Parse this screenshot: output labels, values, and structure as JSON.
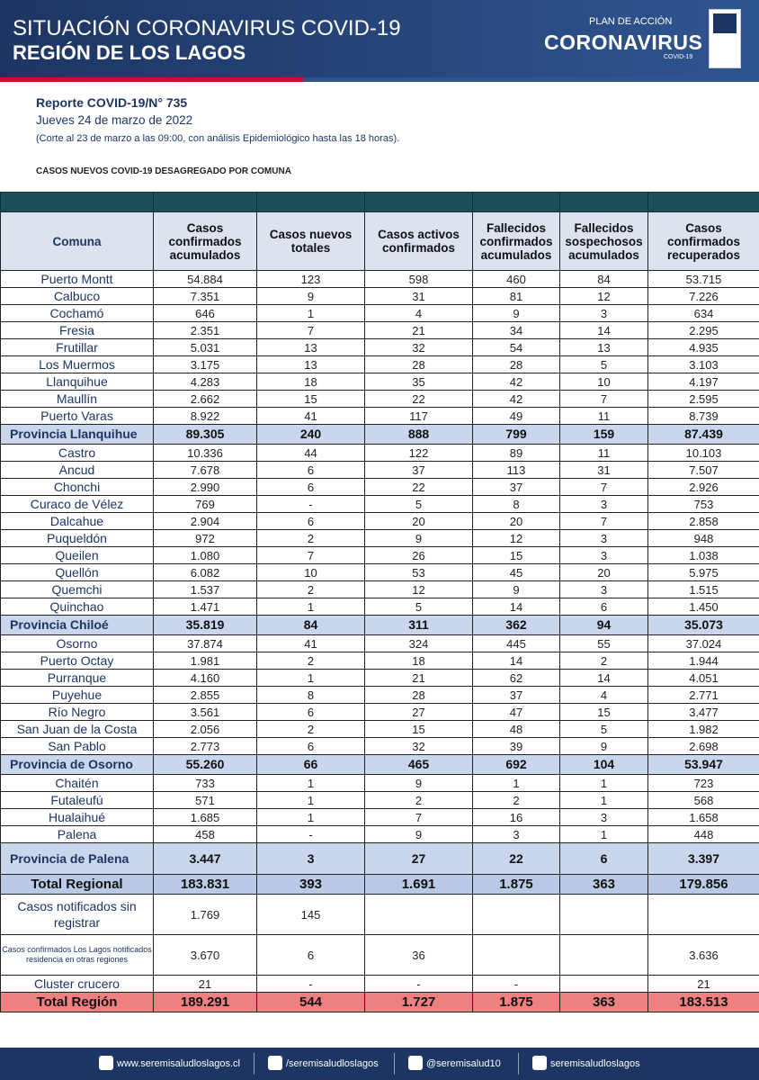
{
  "header": {
    "title": "SITUACIÓN CORONAVIRUS COVID-19",
    "subtitle": "REGIÓN DE LOS LAGOS",
    "logo_top": "PLAN DE ACCIÓN",
    "logo_main": "CORONAVIRUS",
    "logo_sub": "COVID-19"
  },
  "report": {
    "number": "Reporte COVID-19/N° 735",
    "date": "Jueves 24 de marzo  de 2022",
    "note": "(Corte al  23  de marzo a las 09:00, con análisis Epidemiológico hasta las 18 horas).",
    "section_title": "CASOS NUEVOS COVID-19 DESAGREGADO POR COMUNA"
  },
  "table": {
    "headers": [
      "Comuna",
      "Casos confirmados acumulados",
      "Casos nuevos totales",
      "Casos activos confirmados",
      "Fallecidos confirmados acumulados",
      "Fallecidos sospechosos acumulados",
      "Casos confirmados recuperados"
    ],
    "sections": [
      {
        "rows": [
          [
            "Puerto Montt",
            "54.884",
            "123",
            "598",
            "460",
            "84",
            "53.715"
          ],
          [
            "Calbuco",
            "7.351",
            "9",
            "31",
            "81",
            "12",
            "7.226"
          ],
          [
            "Cochamó",
            "646",
            "1",
            "4",
            "9",
            "3",
            "634"
          ],
          [
            "Fresia",
            "2.351",
            "7",
            "21",
            "34",
            "14",
            "2.295"
          ],
          [
            "Frutillar",
            "5.031",
            "13",
            "32",
            "54",
            "13",
            "4.935"
          ],
          [
            "Los Muermos",
            "3.175",
            "13",
            "28",
            "28",
            "5",
            "3.103"
          ],
          [
            "Llanquihue",
            "4.283",
            "18",
            "35",
            "42",
            "10",
            "4.197"
          ],
          [
            "Maullín",
            "2.662",
            "15",
            "22",
            "42",
            "7",
            "2.595"
          ],
          [
            "Puerto Varas",
            "8.922",
            "41",
            "117",
            "49",
            "11",
            "8.739"
          ]
        ],
        "subtotal": [
          "Provincia Llanquihue",
          "89.305",
          "240",
          "888",
          "799",
          "159",
          "87.439"
        ]
      },
      {
        "rows": [
          [
            "Castro",
            "10.336",
            "44",
            "122",
            "89",
            "11",
            "10.103"
          ],
          [
            "Ancud",
            "7.678",
            "6",
            "37",
            "113",
            "31",
            "7.507"
          ],
          [
            "Chonchi",
            "2.990",
            "6",
            "22",
            "37",
            "7",
            "2.926"
          ],
          [
            "Curaco de Vélez",
            "769",
            "-",
            "5",
            "8",
            "3",
            "753"
          ],
          [
            "Dalcahue",
            "2.904",
            "6",
            "20",
            "20",
            "7",
            "2.858"
          ],
          [
            "Puqueldón",
            "972",
            "2",
            "9",
            "12",
            "3",
            "948"
          ],
          [
            "Queilen",
            "1.080",
            "7",
            "26",
            "15",
            "3",
            "1.038"
          ],
          [
            "Quellón",
            "6.082",
            "10",
            "53",
            "45",
            "20",
            "5.975"
          ],
          [
            "Quemchi",
            "1.537",
            "2",
            "12",
            "9",
            "3",
            "1.515"
          ],
          [
            "Quinchao",
            "1.471",
            "1",
            "5",
            "14",
            "6",
            "1.450"
          ]
        ],
        "subtotal": [
          "Provincia  Chiloé",
          "35.819",
          "84",
          "311",
          "362",
          "94",
          "35.073"
        ]
      },
      {
        "rows": [
          [
            "Osorno",
            "37.874",
            "41",
            "324",
            "445",
            "55",
            "37.024"
          ],
          [
            "Puerto Octay",
            "1.981",
            "2",
            "18",
            "14",
            "2",
            "1.944"
          ],
          [
            "Purranque",
            "4.160",
            "1",
            "21",
            "62",
            "14",
            "4.051"
          ],
          [
            "Puyehue",
            "2.855",
            "8",
            "28",
            "37",
            "4",
            "2.771"
          ],
          [
            "Río Negro",
            "3.561",
            "6",
            "27",
            "47",
            "15",
            "3.477"
          ],
          [
            "San Juan de la Costa",
            "2.056",
            "2",
            "15",
            "48",
            "5",
            "1.982"
          ],
          [
            "San Pablo",
            "2.773",
            "6",
            "32",
            "39",
            "9",
            "2.698"
          ]
        ],
        "subtotal": [
          "Provincia de Osorno",
          "55.260",
          "66",
          "465",
          "692",
          "104",
          "53.947"
        ]
      },
      {
        "rows": [
          [
            "Chaitén",
            "733",
            "1",
            "9",
            "1",
            "1",
            "723"
          ],
          [
            "Futaleufú",
            "571",
            "1",
            "2",
            "2",
            "1",
            "568"
          ],
          [
            "Hualaihué",
            "1.685",
            "1",
            "7",
            "16",
            "3",
            "1.658"
          ],
          [
            "Palena",
            "458",
            "-",
            "9",
            "3",
            "1",
            "448"
          ]
        ],
        "subtotal": [
          "Provincia de Palena",
          "3.447",
          "3",
          "27",
          "22",
          "6",
          "3.397"
        ]
      }
    ],
    "total_regional": [
      "Total Regional",
      "183.831",
      "393",
      "1.691",
      "1.875",
      "363",
      "179.856"
    ],
    "extra_rows": [
      [
        "Casos notificados sin registrar",
        "1.769",
        "145",
        null,
        null,
        null,
        null
      ],
      [
        "Casos confirmados Los  Lagos notificados  residencia en otras  regiones",
        "3.670",
        "6",
        "36",
        null,
        null,
        "3.636"
      ],
      [
        "Cluster crucero",
        "21",
        "-",
        "-",
        "-",
        null,
        "21"
      ]
    ],
    "total_region": [
      "Total Región",
      "189.291",
      "544",
      "1.727",
      "1.875",
      "363",
      "183.513"
    ]
  },
  "footer": {
    "web": "www.seremisaludloslagos.cl",
    "facebook": "/seremisaludloslagos",
    "twitter": "@seremisalud10",
    "instagram": "seremisaludloslagos"
  }
}
